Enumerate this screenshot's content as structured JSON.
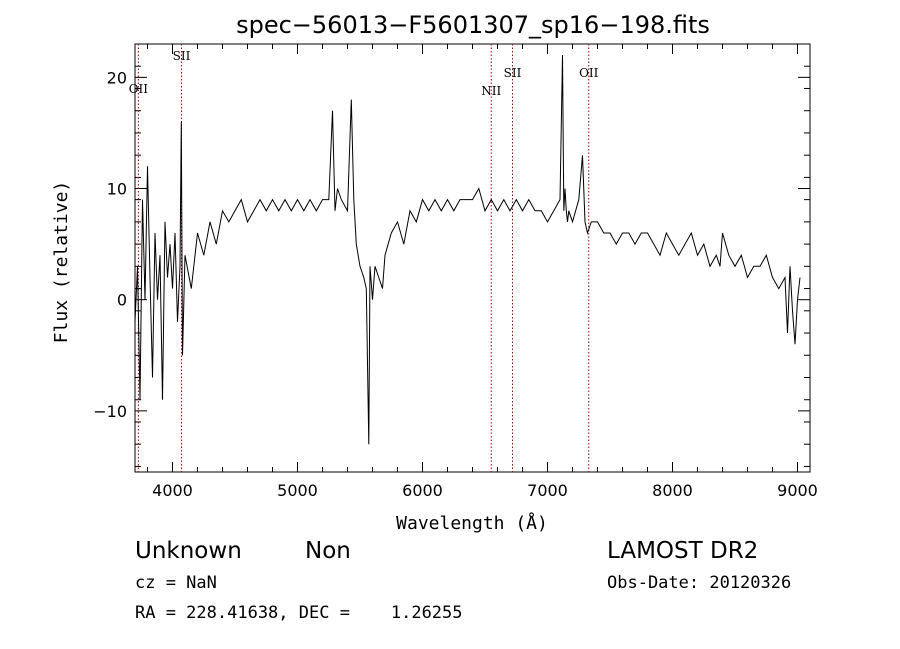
{
  "chart_data": {
    "type": "line",
    "title": "spec−56013−F5601307_sp16−198.fits",
    "xlabel": "Wavelength (Å)",
    "ylabel": "Flux (relative)",
    "xlim": [
      3700,
      9100
    ],
    "ylim": [
      -15.5,
      23
    ],
    "grid": false,
    "x_ticks": [
      4000,
      5000,
      6000,
      7000,
      8000,
      9000
    ],
    "x_tick_labels": [
      "4000",
      "5000",
      "6000",
      "7000",
      "8000",
      "9000"
    ],
    "y_ticks": [
      -10,
      0,
      10,
      20
    ],
    "y_tick_labels": [
      "−10",
      "0",
      "10",
      "20"
    ],
    "line_color": "#000000",
    "marker_color": "#aa0000",
    "emission_lines": [
      {
        "label": "OII",
        "wavelength": 3727
      },
      {
        "label": "SII",
        "wavelength": 4072
      },
      {
        "label": "NII",
        "wavelength": 6550
      },
      {
        "label": "SII",
        "wavelength": 6720
      },
      {
        "label": "OII",
        "wavelength": 7330
      }
    ],
    "series": [
      {
        "x": [
          3700,
          3720,
          3740,
          3760,
          3780,
          3800,
          3820,
          3840,
          3860,
          3880,
          3900,
          3920,
          3940,
          3960,
          3980,
          4000,
          4020,
          4040,
          4060,
          4070,
          4080,
          4100,
          4150,
          4200,
          4250,
          4300,
          4350,
          4400,
          4450,
          4500,
          4550,
          4600,
          4650,
          4700,
          4750,
          4800,
          4850,
          4900,
          4950,
          5000,
          5050,
          5100,
          5150,
          5200,
          5250,
          5280,
          5300,
          5320,
          5350,
          5400,
          5430,
          5450,
          5470,
          5500,
          5530,
          5550,
          5570,
          5580,
          5600,
          5620,
          5650,
          5680,
          5700,
          5750,
          5800,
          5850,
          5900,
          5950,
          6000,
          6050,
          6100,
          6150,
          6200,
          6250,
          6300,
          6350,
          6400,
          6450,
          6500,
          6550,
          6600,
          6650,
          6700,
          6750,
          6800,
          6850,
          6900,
          6950,
          7000,
          7050,
          7100,
          7120,
          7130,
          7140,
          7150,
          7160,
          7170,
          7200,
          7250,
          7280,
          7300,
          7320,
          7350,
          7400,
          7450,
          7500,
          7550,
          7600,
          7650,
          7700,
          7750,
          7800,
          7850,
          7900,
          7950,
          8000,
          8050,
          8100,
          8150,
          8200,
          8250,
          8300,
          8350,
          8380,
          8400,
          8450,
          8500,
          8550,
          8600,
          8650,
          8700,
          8750,
          8800,
          8850,
          8900,
          8920,
          8940,
          8960,
          8980,
          9000,
          9020
        ],
        "y": [
          -2,
          3,
          -9,
          9,
          0,
          12,
          2,
          -7,
          6,
          0,
          4,
          -9,
          7,
          2,
          5,
          1,
          6,
          -2,
          3,
          16,
          -5,
          4,
          1,
          6,
          4,
          7,
          5,
          8,
          7,
          8,
          9,
          7,
          8,
          9,
          8,
          9,
          8,
          9,
          8,
          9,
          8,
          9,
          8,
          9,
          9,
          17,
          8,
          10,
          9,
          8,
          18,
          9,
          5,
          3,
          2,
          1,
          -13,
          3,
          0,
          3,
          2,
          1,
          4,
          6,
          7,
          5,
          8,
          7,
          9,
          8,
          9,
          8,
          9,
          8,
          9,
          9,
          9,
          10,
          8,
          9,
          8,
          9,
          8,
          9,
          8,
          9,
          8,
          8,
          7,
          8,
          9,
          22,
          8,
          10,
          8,
          7,
          8,
          7,
          9,
          13,
          7,
          6,
          7,
          7,
          6,
          6,
          5,
          6,
          6,
          5,
          6,
          6,
          5,
          4,
          6,
          5,
          4,
          5,
          6,
          4,
          5,
          3,
          4,
          3,
          6,
          4,
          3,
          4,
          2,
          3,
          3,
          4,
          2,
          1,
          2,
          -3,
          3,
          -1,
          -4,
          0,
          2
        ]
      }
    ]
  },
  "footer": {
    "object_class": "Unknown",
    "object_subclass": "Non",
    "survey": "LAMOST DR2",
    "cz": "cz = NaN",
    "obs_date": "Obs-Date: 20120326",
    "coords": "RA = 228.41638, DEC =    1.26255"
  }
}
